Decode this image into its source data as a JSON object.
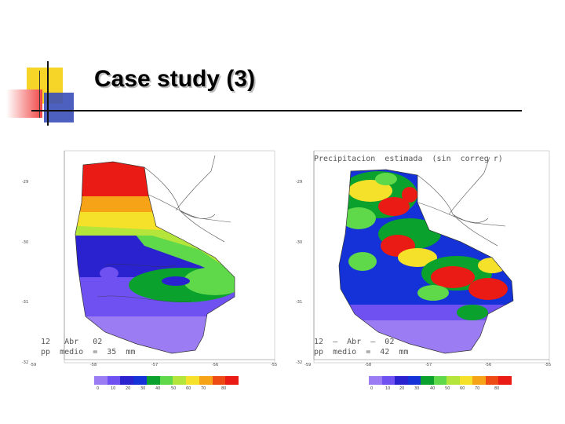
{
  "slide": {
    "title": "Case study (3)"
  },
  "maps": [
    {
      "caption_lines": [
        "12   Abr   02",
        "pp  medio  =  35  mm"
      ],
      "lat_ticks": [
        "-29",
        "-30",
        "-31",
        "-32"
      ],
      "lon_ticks": [
        "-59",
        "-58",
        "-57",
        "-56",
        "-55"
      ],
      "colorbar": {
        "labels": [
          "0",
          "10",
          "20",
          "30",
          "40",
          "50",
          "60",
          "70",
          "80"
        ],
        "colors": [
          "#9b7cf2",
          "#6f50f0",
          "#2a22cf",
          "#1432d8",
          "#0aa12c",
          "#5fd84a",
          "#b4e53a",
          "#f6e12a",
          "#f6a318",
          "#ee4a14",
          "#ea1a14"
        ]
      }
    },
    {
      "header": "Precipitacion  estimada  (sin  correg r)",
      "caption_lines": [
        "12  –  Abr  –  02",
        "pp  medio  =  42  mm"
      ],
      "lat_ticks": [
        "-29",
        "-30",
        "-31",
        "-32"
      ],
      "lon_ticks": [
        "-59",
        "-58",
        "-57",
        "-56",
        "-55"
      ],
      "colorbar": {
        "labels": [
          "0",
          "10",
          "20",
          "30",
          "40",
          "50",
          "60",
          "70",
          "80"
        ],
        "colors": [
          "#9b7cf2",
          "#6f50f0",
          "#2a22cf",
          "#1432d8",
          "#0aa12c",
          "#5fd84a",
          "#b4e53a",
          "#f6e12a",
          "#f6a318",
          "#ee4a14",
          "#ea1a14"
        ]
      }
    }
  ]
}
